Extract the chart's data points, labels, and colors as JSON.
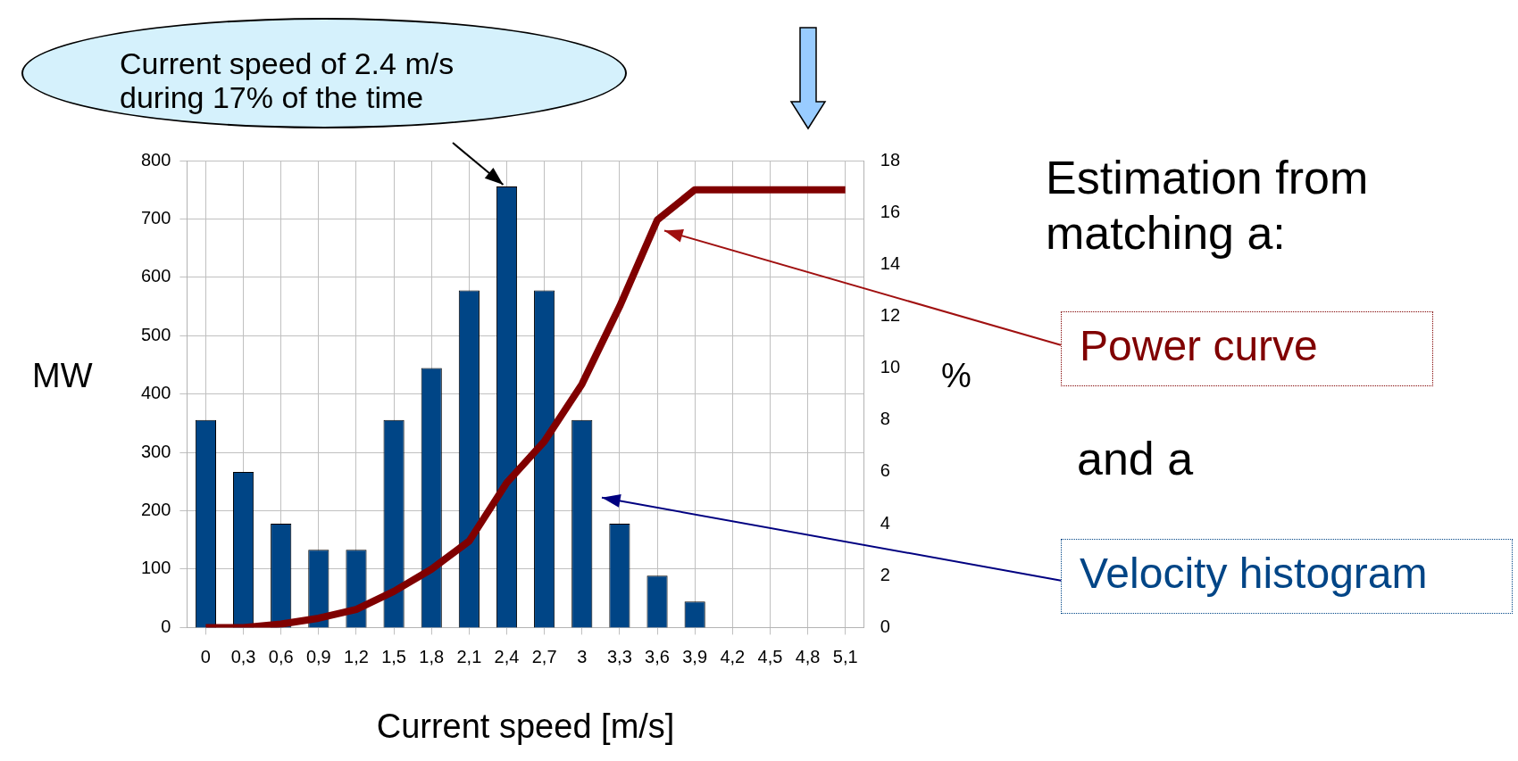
{
  "chart_data": {
    "type": "bar",
    "xlabel": "Current speed [m/s]",
    "ylabel": "MW",
    "y2label": "%",
    "categories": [
      "0",
      "0,3",
      "0,6",
      "0,9",
      "1,2",
      "1,5",
      "1,8",
      "2,1",
      "2,4",
      "2,7",
      "3",
      "3,3",
      "3,6",
      "3,9",
      "4,2",
      "4,5",
      "4,8",
      "5,1"
    ],
    "series": [
      {
        "name": "Velocity histogram",
        "type": "bar",
        "axis": "y2",
        "color": "#004586",
        "values": [
          8,
          6,
          4,
          3,
          3,
          8,
          10,
          13,
          17,
          13,
          8,
          4,
          2,
          1,
          0,
          0,
          0,
          0
        ]
      },
      {
        "name": "Power curve",
        "type": "line",
        "color": "#800000",
        "line_style": "solid",
        "values": [
          0,
          0,
          6,
          16,
          31,
          62,
          100,
          148,
          248,
          319,
          417,
          550,
          698,
          750,
          750,
          750,
          750,
          750
        ]
      }
    ],
    "ylim": [
      0,
      800
    ],
    "yticks": [
      0,
      100,
      200,
      300,
      400,
      500,
      600,
      700,
      800
    ],
    "y2lim": [
      0,
      18
    ],
    "y2ticks": [
      0,
      2,
      4,
      6,
      8,
      10,
      12,
      14,
      16,
      18
    ],
    "grid": true,
    "legend": "right",
    "annotations": [
      "Current speed of 2.4 m/s\nduring 17% of the time",
      "Estimation from\nmatching a:",
      "and a"
    ]
  }
}
